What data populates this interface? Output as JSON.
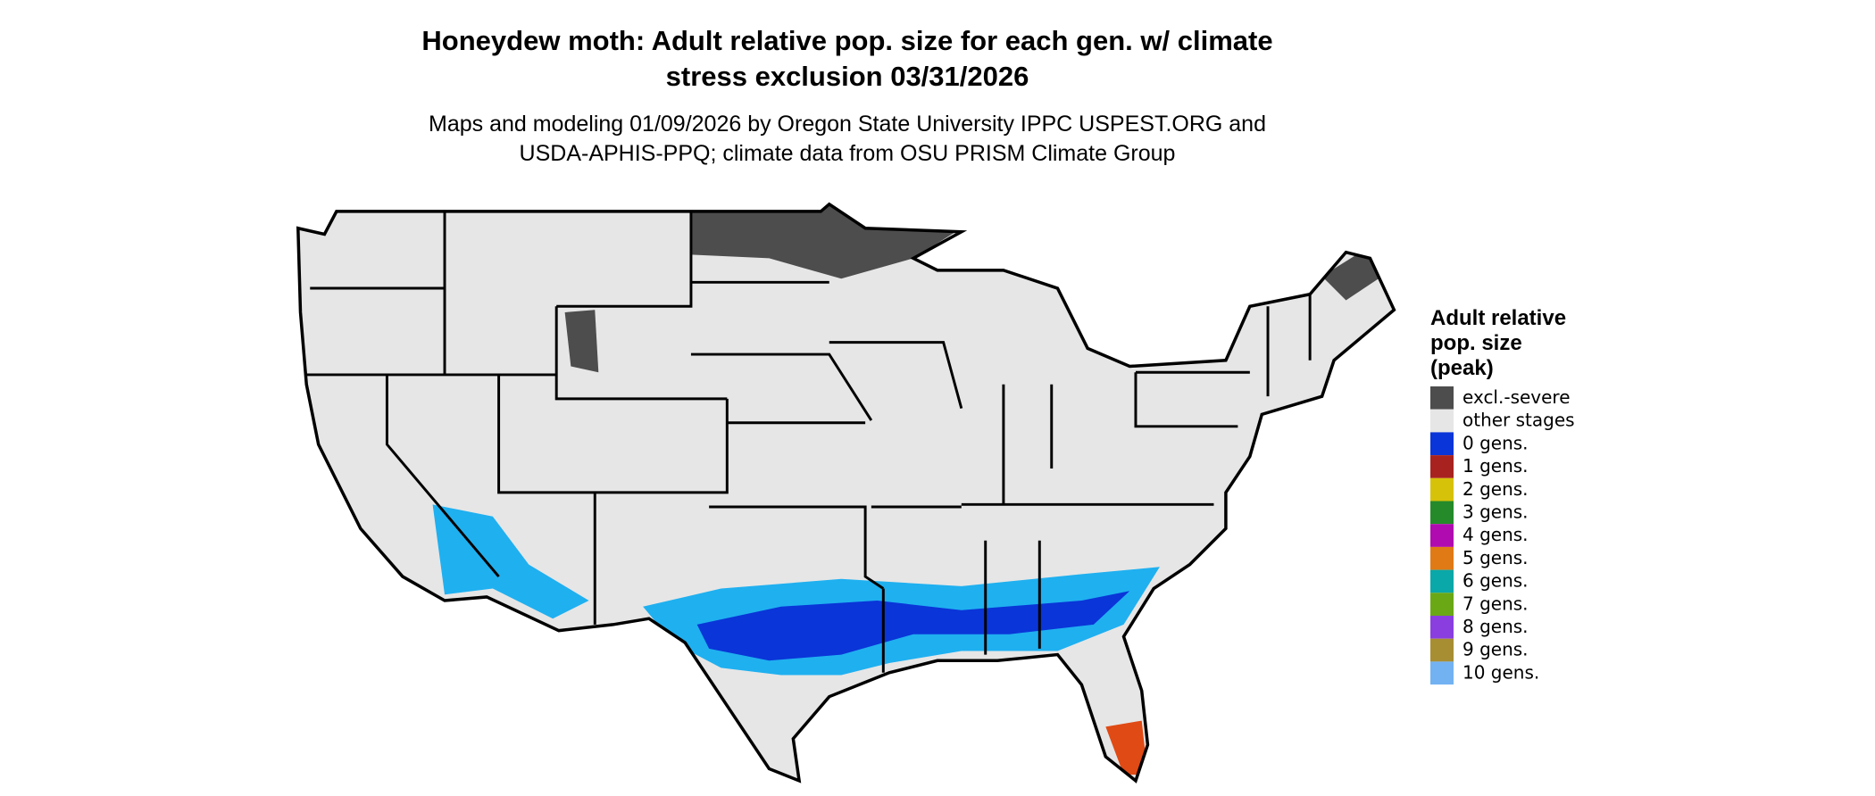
{
  "title": [
    "Honeydew moth: Adult relative pop. size for each gen. w/ climate",
    "stress exclusion 03/31/2026"
  ],
  "subtitle": [
    "Maps and modeling 01/09/2026 by Oregon State University IPPC USPEST.ORG and",
    "USDA-APHIS-PPQ; climate data from OSU PRISM Climate Group"
  ],
  "legend": {
    "title": [
      "Adult relative",
      "pop. size",
      "(peak)"
    ],
    "items": [
      {
        "label": "excl.-severe",
        "color": "#4d4d4d"
      },
      {
        "label": "other stages",
        "color": "#e6e6e6"
      },
      {
        "label": "0 gens.",
        "color": "#0a35d8"
      },
      {
        "label": "1 gens.",
        "color": "#a8231f"
      },
      {
        "label": "2 gens.",
        "color": "#d7c20a"
      },
      {
        "label": "3 gens.",
        "color": "#248a2a"
      },
      {
        "label": "4 gens.",
        "color": "#b00bb0"
      },
      {
        "label": "5 gens.",
        "color": "#e07a14"
      },
      {
        "label": "6 gens.",
        "color": "#0aa8a8"
      },
      {
        "label": "7 gens.",
        "color": "#6ba816"
      },
      {
        "label": "8 gens.",
        "color": "#8a3ee0"
      },
      {
        "label": "9 gens.",
        "color": "#a88e32"
      },
      {
        "label": "10 gens.",
        "color": "#72b2f2"
      }
    ]
  }
}
